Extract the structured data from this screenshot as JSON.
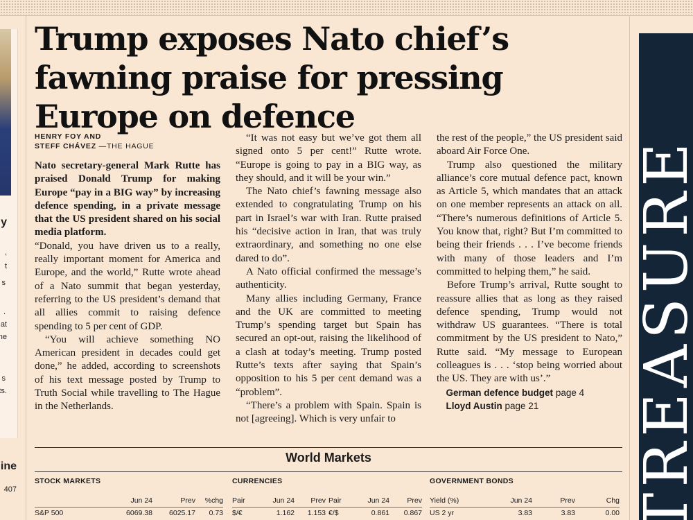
{
  "headline": "Trump exposes Nato chief’s fawning praise for pressing Europe on defence",
  "byline": {
    "line1": "HENRY FOY AND",
    "line2_name": "STEFF CHÁVEZ",
    "line2_loc": "—THE HAGUE"
  },
  "standfirst": "Nato secretary-general Mark Rutte has praised Donald Trump for making Europe “pay in a BIG way” by increasing defence spending, in a private message that the US president shared on his social media platform.",
  "col1": [
    "“Donald, you have driven us to a really, really important moment for America and Europe, and the world,” Rutte wrote ahead of a Nato summit that began yesterday, referring to the US president’s demand that all allies commit to raising defence spending to 5 per cent of GDP.",
    "“You will achieve something NO American president in decades could get done,” he added, according to screenshots of his text message posted by Trump to Truth Social while travelling to The Hague in the Netherlands."
  ],
  "col2": [
    "“It was not easy but we’ve got them all signed onto 5 per cent!” Rutte wrote. “Europe is going to pay in a BIG way, as they should, and it will be your win.”",
    "The Nato chief’s fawning message also extended to congratulating Trump on his part in Israel’s war with Iran. Rutte praised his “decisive action in Iran, that was truly extraordinary, and something no one else dared to do”.",
    "A Nato official confirmed the message’s authenticity.",
    "Many allies including Germany, France and the UK are committed to meeting Trump’s spending target but Spain has secured an opt-out, raising the likelihood of a clash at today’s meeting. Trump posted Rutte’s texts after saying that Spain’s opposition to his 5 per cent demand was a “problem”.",
    "“There’s a problem with Spain. Spain is not [agreeing]. Which is very unfair to"
  ],
  "col3": [
    "the rest of the people,” the US president said aboard Air Force One.",
    "Trump also questioned the military alliance’s core mutual defence pact, known as Article 5, which mandates that an attack on one member represents an attack on all. “There’s numerous definitions of Article 5. You know that, right? But I’m committed to being their friends . . . I’ve become friends with many of those leaders and I’m committed to helping them,” he said.",
    "Before Trump’s arrival, Rutte sought to reassure allies that as long as they raised defence spending, Trump would not withdraw US guarantees. “There is total commitment by the US president to Nato,” Rutte said. “My message to European colleagues is . . . ‘stop being worried about the US. They are with us’.”"
  ],
  "xrefs": [
    {
      "label": "German defence budget",
      "page": "page 4"
    },
    {
      "label": "Lloyd Austin",
      "page": "page 21"
    }
  ],
  "left_fragments": [
    "y",
    ",",
    "t",
    "s",
    ".",
    "at",
    "ne",
    "s",
    "ts.",
    "ine",
    "407"
  ],
  "markets": {
    "title": "World Markets",
    "stock": {
      "heading": "STOCK MARKETS",
      "headers": [
        "",
        "Jun 24",
        "Prev",
        "%chg"
      ],
      "rows": [
        [
          "S&P 500",
          "6069.38",
          "6025.17",
          "0.73"
        ]
      ]
    },
    "currencies": {
      "heading": "CURRENCIES",
      "headers": [
        "Pair",
        "Jun 24",
        "Prev",
        "Pair",
        "Jun 24",
        "Prev"
      ],
      "rows": [
        [
          "$/€",
          "1.162",
          "1.153",
          "€/$",
          "0.861",
          "0.867"
        ]
      ]
    },
    "bonds": {
      "heading": "GOVERNMENT BONDS",
      "headers": [
        "Yield (%)",
        "Jun 24",
        "Prev",
        "Chg"
      ],
      "rows": [
        [
          "US 2 yr",
          "3.83",
          "3.83",
          "0.00"
        ]
      ]
    }
  },
  "side_word": "TREASURE"
}
